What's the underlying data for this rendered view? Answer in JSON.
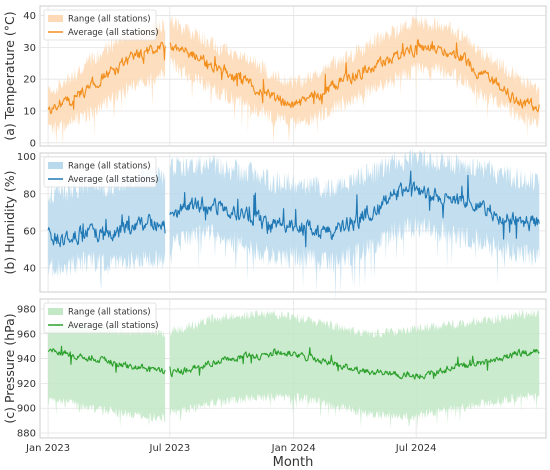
{
  "chart_data": [
    {
      "type": "area",
      "panel": "a",
      "ylabel": "(a) Temperature (°C)",
      "xlabel": "",
      "ylim": [
        -1,
        43
      ],
      "yticks": [
        0,
        10,
        20,
        30,
        40
      ],
      "grid": true,
      "legend": "top-left",
      "series": [
        {
          "name": "Range (all stations)",
          "kind": "band",
          "color": "#fdd9b5"
        },
        {
          "name": "Average (all stations)",
          "kind": "line",
          "color": "#f28e1c"
        }
      ],
      "gap": [
        "2023-06-24",
        "2023-06-30"
      ],
      "x": [
        "2023-01-01",
        "2023-02-01",
        "2023-03-01",
        "2023-04-01",
        "2023-05-01",
        "2023-06-01",
        "2023-06-24",
        "2023-07-01",
        "2023-08-01",
        "2023-09-01",
        "2023-10-01",
        "2023-11-01",
        "2023-12-01",
        "2024-01-01",
        "2024-02-01",
        "2024-03-01",
        "2024-04-01",
        "2024-05-01",
        "2024-06-01",
        "2024-07-01",
        "2024-08-01",
        "2024-09-01",
        "2024-10-01",
        "2024-11-01",
        "2024-12-01",
        "2024-12-31"
      ],
      "mean": [
        10,
        13,
        17,
        22,
        26,
        29,
        31,
        31,
        28,
        24,
        21,
        18,
        14,
        12,
        14,
        18,
        21,
        24,
        27,
        30,
        30,
        28,
        22,
        18,
        13,
        11
      ],
      "low": [
        4,
        6,
        9,
        13,
        17,
        20,
        22,
        25,
        21,
        17,
        14,
        11,
        8,
        6,
        8,
        11,
        14,
        17,
        20,
        23,
        23,
        21,
        16,
        12,
        8,
        6
      ],
      "high": [
        16,
        20,
        25,
        30,
        34,
        36,
        37,
        38,
        35,
        31,
        28,
        26,
        21,
        19,
        21,
        25,
        28,
        32,
        35,
        38,
        37,
        35,
        29,
        25,
        20,
        17
      ]
    },
    {
      "type": "area",
      "panel": "b",
      "ylabel": "(b) Humidity (%)",
      "xlabel": "",
      "ylim": [
        27,
        102
      ],
      "yticks": [
        40,
        60,
        80,
        100
      ],
      "grid": true,
      "legend": "top-left",
      "series": [
        {
          "name": "Range (all stations)",
          "kind": "band",
          "color": "#b9d9ec"
        },
        {
          "name": "Average (all stations)",
          "kind": "line",
          "color": "#1f77b4"
        }
      ],
      "gap": [
        "2023-06-24",
        "2023-06-30"
      ],
      "x": [
        "2023-01-01",
        "2023-02-01",
        "2023-03-01",
        "2023-04-01",
        "2023-05-01",
        "2023-06-01",
        "2023-06-24",
        "2023-07-01",
        "2023-08-01",
        "2023-09-01",
        "2023-10-01",
        "2023-11-01",
        "2023-12-01",
        "2024-01-01",
        "2024-02-01",
        "2024-03-01",
        "2024-04-01",
        "2024-05-01",
        "2024-06-01",
        "2024-07-01",
        "2024-08-01",
        "2024-09-01",
        "2024-10-01",
        "2024-11-01",
        "2024-12-01",
        "2024-12-31"
      ],
      "mean": [
        57,
        56,
        61,
        58,
        62,
        65,
        60,
        70,
        73,
        75,
        71,
        68,
        62,
        63,
        61,
        58,
        66,
        71,
        80,
        82,
        79,
        76,
        74,
        68,
        66,
        63
      ],
      "low": [
        40,
        40,
        44,
        41,
        44,
        46,
        44,
        52,
        56,
        58,
        54,
        50,
        46,
        46,
        44,
        42,
        48,
        52,
        60,
        62,
        60,
        57,
        55,
        50,
        48,
        46
      ],
      "high": [
        80,
        82,
        86,
        84,
        88,
        92,
        88,
        94,
        96,
        96,
        93,
        91,
        86,
        86,
        84,
        82,
        88,
        92,
        98,
        99,
        98,
        96,
        95,
        90,
        88,
        86
      ]
    },
    {
      "type": "area",
      "panel": "c",
      "ylabel": "(c) Pressure (hPa)",
      "xlabel": "",
      "ylim": [
        876,
        988
      ],
      "yticks": [
        880,
        900,
        920,
        940,
        960,
        980
      ],
      "grid": true,
      "legend": "top-left",
      "series": [
        {
          "name": "Range (all stations)",
          "kind": "band",
          "color": "#c2e8c5"
        },
        {
          "name": "Average (all stations)",
          "kind": "line",
          "color": "#2ca02c"
        }
      ],
      "gap": [
        "2023-06-24",
        "2023-06-30"
      ],
      "x": [
        "2023-01-01",
        "2023-02-01",
        "2023-03-01",
        "2023-04-01",
        "2023-05-01",
        "2023-06-01",
        "2023-06-24",
        "2023-07-01",
        "2023-08-01",
        "2023-09-01",
        "2023-10-01",
        "2023-11-01",
        "2023-12-01",
        "2024-01-01",
        "2024-02-01",
        "2024-03-01",
        "2024-04-01",
        "2024-05-01",
        "2024-06-01",
        "2024-07-01",
        "2024-08-01",
        "2024-09-01",
        "2024-10-01",
        "2024-11-01",
        "2024-12-01",
        "2024-12-31"
      ],
      "mean": [
        946,
        944,
        940,
        938,
        934,
        932,
        929,
        928,
        932,
        938,
        940,
        942,
        944,
        944,
        940,
        936,
        932,
        928,
        927,
        926,
        930,
        933,
        936,
        940,
        944,
        946
      ],
      "low": [
        906,
        904,
        900,
        898,
        895,
        893,
        892,
        896,
        900,
        904,
        906,
        908,
        909,
        909,
        906,
        902,
        898,
        895,
        894,
        894,
        897,
        900,
        903,
        906,
        909,
        910
      ],
      "high": [
        968,
        968,
        966,
        964,
        962,
        962,
        960,
        962,
        966,
        972,
        974,
        976,
        976,
        974,
        970,
        966,
        962,
        960,
        962,
        964,
        966,
        968,
        970,
        972,
        976,
        976
      ]
    }
  ],
  "xaxis": {
    "label": "Month",
    "range": [
      "2022-12-20",
      "2025-01-10"
    ],
    "ticks": [
      {
        "date": "2023-01-01",
        "label": "Jan 2023"
      },
      {
        "date": "2023-07-01",
        "label": "Jul 2023"
      },
      {
        "date": "2024-01-01",
        "label": "Jan 2024"
      },
      {
        "date": "2024-07-01",
        "label": "Jul 2024"
      }
    ]
  }
}
